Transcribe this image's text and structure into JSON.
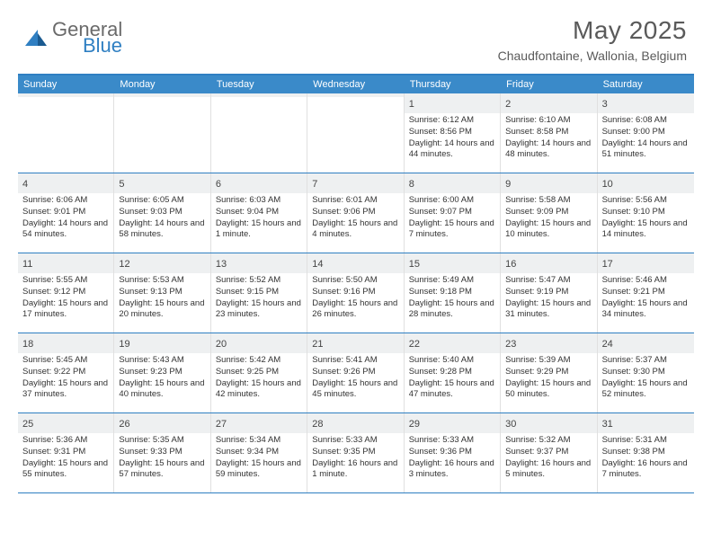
{
  "logo": {
    "general": "General",
    "blue": "Blue"
  },
  "title": "May 2025",
  "location": "Chaudfontaine, Wallonia, Belgium",
  "colors": {
    "brand_blue": "#3a8ac9",
    "accent_line": "#2f7fc2",
    "text_gray": "#5a5a5a",
    "daybar_bg": "#eef0f1"
  },
  "weekdays": [
    "Sunday",
    "Monday",
    "Tuesday",
    "Wednesday",
    "Thursday",
    "Friday",
    "Saturday"
  ],
  "weeks": [
    [
      {
        "empty": true
      },
      {
        "empty": true
      },
      {
        "empty": true
      },
      {
        "empty": true
      },
      {
        "n": "1",
        "sr": "Sunrise: 6:12 AM",
        "ss": "Sunset: 8:56 PM",
        "dl": "Daylight: 14 hours and 44 minutes."
      },
      {
        "n": "2",
        "sr": "Sunrise: 6:10 AM",
        "ss": "Sunset: 8:58 PM",
        "dl": "Daylight: 14 hours and 48 minutes."
      },
      {
        "n": "3",
        "sr": "Sunrise: 6:08 AM",
        "ss": "Sunset: 9:00 PM",
        "dl": "Daylight: 14 hours and 51 minutes."
      }
    ],
    [
      {
        "n": "4",
        "sr": "Sunrise: 6:06 AM",
        "ss": "Sunset: 9:01 PM",
        "dl": "Daylight: 14 hours and 54 minutes."
      },
      {
        "n": "5",
        "sr": "Sunrise: 6:05 AM",
        "ss": "Sunset: 9:03 PM",
        "dl": "Daylight: 14 hours and 58 minutes."
      },
      {
        "n": "6",
        "sr": "Sunrise: 6:03 AM",
        "ss": "Sunset: 9:04 PM",
        "dl": "Daylight: 15 hours and 1 minute."
      },
      {
        "n": "7",
        "sr": "Sunrise: 6:01 AM",
        "ss": "Sunset: 9:06 PM",
        "dl": "Daylight: 15 hours and 4 minutes."
      },
      {
        "n": "8",
        "sr": "Sunrise: 6:00 AM",
        "ss": "Sunset: 9:07 PM",
        "dl": "Daylight: 15 hours and 7 minutes."
      },
      {
        "n": "9",
        "sr": "Sunrise: 5:58 AM",
        "ss": "Sunset: 9:09 PM",
        "dl": "Daylight: 15 hours and 10 minutes."
      },
      {
        "n": "10",
        "sr": "Sunrise: 5:56 AM",
        "ss": "Sunset: 9:10 PM",
        "dl": "Daylight: 15 hours and 14 minutes."
      }
    ],
    [
      {
        "n": "11",
        "sr": "Sunrise: 5:55 AM",
        "ss": "Sunset: 9:12 PM",
        "dl": "Daylight: 15 hours and 17 minutes."
      },
      {
        "n": "12",
        "sr": "Sunrise: 5:53 AM",
        "ss": "Sunset: 9:13 PM",
        "dl": "Daylight: 15 hours and 20 minutes."
      },
      {
        "n": "13",
        "sr": "Sunrise: 5:52 AM",
        "ss": "Sunset: 9:15 PM",
        "dl": "Daylight: 15 hours and 23 minutes."
      },
      {
        "n": "14",
        "sr": "Sunrise: 5:50 AM",
        "ss": "Sunset: 9:16 PM",
        "dl": "Daylight: 15 hours and 26 minutes."
      },
      {
        "n": "15",
        "sr": "Sunrise: 5:49 AM",
        "ss": "Sunset: 9:18 PM",
        "dl": "Daylight: 15 hours and 28 minutes."
      },
      {
        "n": "16",
        "sr": "Sunrise: 5:47 AM",
        "ss": "Sunset: 9:19 PM",
        "dl": "Daylight: 15 hours and 31 minutes."
      },
      {
        "n": "17",
        "sr": "Sunrise: 5:46 AM",
        "ss": "Sunset: 9:21 PM",
        "dl": "Daylight: 15 hours and 34 minutes."
      }
    ],
    [
      {
        "n": "18",
        "sr": "Sunrise: 5:45 AM",
        "ss": "Sunset: 9:22 PM",
        "dl": "Daylight: 15 hours and 37 minutes."
      },
      {
        "n": "19",
        "sr": "Sunrise: 5:43 AM",
        "ss": "Sunset: 9:23 PM",
        "dl": "Daylight: 15 hours and 40 minutes."
      },
      {
        "n": "20",
        "sr": "Sunrise: 5:42 AM",
        "ss": "Sunset: 9:25 PM",
        "dl": "Daylight: 15 hours and 42 minutes."
      },
      {
        "n": "21",
        "sr": "Sunrise: 5:41 AM",
        "ss": "Sunset: 9:26 PM",
        "dl": "Daylight: 15 hours and 45 minutes."
      },
      {
        "n": "22",
        "sr": "Sunrise: 5:40 AM",
        "ss": "Sunset: 9:28 PM",
        "dl": "Daylight: 15 hours and 47 minutes."
      },
      {
        "n": "23",
        "sr": "Sunrise: 5:39 AM",
        "ss": "Sunset: 9:29 PM",
        "dl": "Daylight: 15 hours and 50 minutes."
      },
      {
        "n": "24",
        "sr": "Sunrise: 5:37 AM",
        "ss": "Sunset: 9:30 PM",
        "dl": "Daylight: 15 hours and 52 minutes."
      }
    ],
    [
      {
        "n": "25",
        "sr": "Sunrise: 5:36 AM",
        "ss": "Sunset: 9:31 PM",
        "dl": "Daylight: 15 hours and 55 minutes."
      },
      {
        "n": "26",
        "sr": "Sunrise: 5:35 AM",
        "ss": "Sunset: 9:33 PM",
        "dl": "Daylight: 15 hours and 57 minutes."
      },
      {
        "n": "27",
        "sr": "Sunrise: 5:34 AM",
        "ss": "Sunset: 9:34 PM",
        "dl": "Daylight: 15 hours and 59 minutes."
      },
      {
        "n": "28",
        "sr": "Sunrise: 5:33 AM",
        "ss": "Sunset: 9:35 PM",
        "dl": "Daylight: 16 hours and 1 minute."
      },
      {
        "n": "29",
        "sr": "Sunrise: 5:33 AM",
        "ss": "Sunset: 9:36 PM",
        "dl": "Daylight: 16 hours and 3 minutes."
      },
      {
        "n": "30",
        "sr": "Sunrise: 5:32 AM",
        "ss": "Sunset: 9:37 PM",
        "dl": "Daylight: 16 hours and 5 minutes."
      },
      {
        "n": "31",
        "sr": "Sunrise: 5:31 AM",
        "ss": "Sunset: 9:38 PM",
        "dl": "Daylight: 16 hours and 7 minutes."
      }
    ]
  ]
}
